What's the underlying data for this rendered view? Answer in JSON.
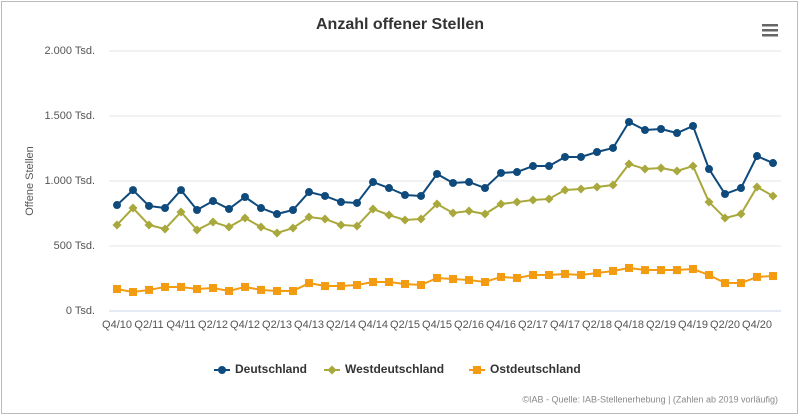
{
  "chart_data": {
    "type": "line",
    "title": "Anzahl offener Stellen",
    "y_label": "Offene Stellen",
    "credits": "©IAB - Quelle: IAB-Stellenerhebung | (Zahlen ab 2019 vorläufig)",
    "categories": [
      "Q4/10",
      null,
      "Q2/11",
      null,
      "Q4/11",
      null,
      "Q2/12",
      null,
      "Q4/12",
      null,
      "Q2/13",
      null,
      "Q4/13",
      null,
      "Q2/14",
      null,
      "Q4/14",
      null,
      "Q2/15",
      null,
      "Q4/15",
      null,
      "Q2/16",
      null,
      "Q4/16",
      null,
      "Q2/17",
      null,
      "Q4/17",
      null,
      "Q2/18",
      null,
      "Q4/18",
      null,
      "Q2/19",
      null,
      "Q4/19",
      null,
      "Q2/20",
      null,
      "Q4/20",
      null
    ],
    "ylim": [
      0,
      2000
    ],
    "yticks": [
      {
        "value": 0,
        "label": "0 Tsd."
      },
      {
        "value": 500,
        "label": "500 Tsd."
      },
      {
        "value": 1000,
        "label": "1.000 Tsd."
      },
      {
        "value": 1500,
        "label": "1.500 Tsd."
      },
      {
        "value": 2000,
        "label": "2.000 Tsd."
      }
    ],
    "grid": true,
    "legend": "bottom",
    "series": [
      {
        "name": "Deutschland",
        "color": "#0e4a7c",
        "marker": "circle",
        "values": [
          815,
          930,
          808,
          792,
          930,
          777,
          846,
          785,
          877,
          792,
          746,
          777,
          915,
          885,
          838,
          831,
          992,
          946,
          892,
          885,
          1054,
          985,
          992,
          946,
          1062,
          1069,
          1115,
          1115,
          1185,
          1185,
          1223,
          1254,
          1454,
          1392,
          1400,
          1369,
          1423,
          1092,
          900,
          946,
          1192,
          1138
        ]
      },
      {
        "name": "Westdeutschland",
        "color": "#a9a83c",
        "marker": "diamond",
        "values": [
          662,
          792,
          662,
          631,
          762,
          623,
          685,
          646,
          715,
          646,
          600,
          638,
          723,
          708,
          662,
          654,
          785,
          738,
          700,
          708,
          823,
          754,
          769,
          746,
          823,
          838,
          854,
          862,
          931,
          938,
          954,
          969,
          1131,
          1092,
          1100,
          1077,
          1115,
          838,
          715,
          746,
          954,
          885
        ]
      },
      {
        "name": "Ostdeutschland",
        "color": "#f39c12",
        "marker": "square",
        "values": [
          169,
          146,
          162,
          185,
          185,
          169,
          177,
          154,
          185,
          162,
          154,
          154,
          215,
          192,
          192,
          200,
          223,
          223,
          208,
          200,
          254,
          246,
          238,
          223,
          262,
          254,
          277,
          277,
          285,
          277,
          292,
          308,
          331,
          315,
          315,
          315,
          323,
          277,
          215,
          215,
          262,
          269
        ]
      }
    ]
  }
}
